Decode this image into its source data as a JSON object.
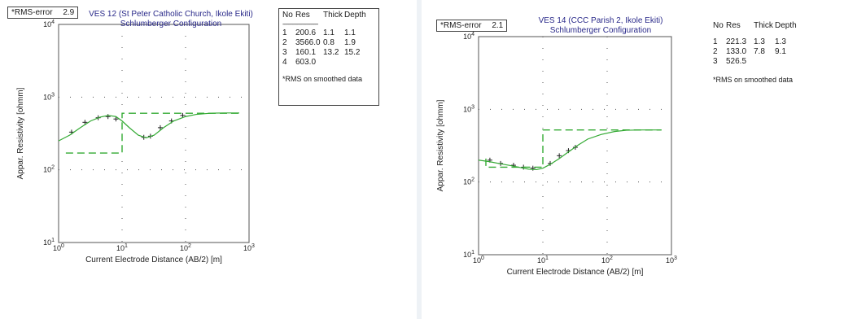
{
  "chart_data": [
    {
      "type": "line",
      "title": "VES 12 (St Peter Catholic Church, Ikole Ekiti)",
      "subtitle": "Schlumberger Configuration",
      "xlabel": "Current Electrode Distance (AB/2) [m]",
      "ylabel": "Appar. Resistivity [ohmm]",
      "x_scale": "log",
      "y_scale": "log",
      "xlim": [
        1,
        1000
      ],
      "ylim": [
        10,
        10000
      ],
      "x_ticks": [
        "10^0",
        "10^1",
        "10^2",
        "10^3"
      ],
      "y_ticks": [
        "10^1",
        "10^2",
        "10^3",
        "10^4"
      ],
      "rms_label": "*RMS-error",
      "rms_value": "2.9",
      "series": [
        {
          "name": "field",
          "kind": "points",
          "x": [
            1.6,
            2.6,
            4.2,
            6.0,
            8.0,
            22,
            28,
            40,
            60,
            90
          ],
          "y": [
            330,
            450,
            520,
            540,
            500,
            280,
            290,
            380,
            470,
            560
          ]
        },
        {
          "name": "calculated",
          "kind": "curve",
          "x": [
            1,
            1.5,
            2.2,
            3.2,
            4.5,
            6,
            8,
            10,
            13,
            18,
            24,
            32,
            45,
            65,
            100,
            150,
            250,
            400,
            700
          ],
          "y": [
            250,
            300,
            380,
            470,
            530,
            560,
            540,
            470,
            380,
            300,
            275,
            300,
            380,
            470,
            540,
            580,
            600,
            605,
            605
          ]
        },
        {
          "name": "model",
          "kind": "step",
          "x": [
            1.3,
            1.3,
            10,
            10,
            700
          ],
          "y": [
            170,
            170,
            170,
            600,
            600
          ]
        }
      ],
      "layers": {
        "header": [
          "No",
          "Res",
          "Thick",
          "Depth"
        ],
        "separator": "--------------------------",
        "rows": [
          [
            "1",
            "200.6",
            "1.1",
            "1.1"
          ],
          [
            "2",
            "3566.0",
            "0.8",
            "1.9"
          ],
          [
            "3",
            "160.1",
            "13.2",
            "15.2"
          ],
          [
            "4",
            "603.0",
            "",
            ""
          ]
        ]
      },
      "note": "*RMS on smoothed data",
      "colors": {
        "curve": "#33aa33",
        "model": "#33aa33",
        "points": "#222222"
      }
    },
    {
      "type": "line",
      "title": "VES 14 (CCC Parish 2, Ikole Ekiti)",
      "subtitle": "Schlumberger Configuration",
      "xlabel": "Current Electrode Distance (AB/2) [m]",
      "ylabel": "Appar. Resistivity [ohmm]",
      "x_scale": "log",
      "y_scale": "log",
      "xlim": [
        1,
        1000
      ],
      "ylim": [
        10,
        10000
      ],
      "x_ticks": [
        "10^0",
        "10^1",
        "10^2",
        "10^3"
      ],
      "y_ticks": [
        "10^1",
        "10^2",
        "10^3",
        "10^4"
      ],
      "rms_label": "*RMS-error",
      "rms_value": "2.1",
      "series": [
        {
          "name": "field",
          "kind": "points",
          "x": [
            1.5,
            2.2,
            3.5,
            5,
            7,
            13,
            18,
            25,
            32
          ],
          "y": [
            200,
            180,
            170,
            160,
            155,
            180,
            230,
            270,
            300
          ]
        },
        {
          "name": "calculated",
          "kind": "curve",
          "x": [
            1,
            1.5,
            2.2,
            3.2,
            4.5,
            6,
            8,
            10,
            13,
            18,
            25,
            35,
            50,
            80,
            130,
            200,
            350,
            700
          ],
          "y": [
            200,
            190,
            178,
            168,
            158,
            150,
            148,
            155,
            175,
            210,
            260,
            320,
            390,
            450,
            495,
            515,
            520,
            520
          ]
        },
        {
          "name": "model",
          "kind": "step",
          "x": [
            1.3,
            1.3,
            1.3,
            8,
            10,
            10,
            700
          ],
          "y": [
            210,
            160,
            160,
            160,
            160,
            520,
            520
          ]
        }
      ],
      "layers": {
        "header": [
          "No",
          "Res",
          "Thick",
          "Depth"
        ],
        "separator": "",
        "rows": [
          [
            "1",
            "221.3",
            "1.3",
            "1.3"
          ],
          [
            "2",
            "133.0",
            "7.8",
            "9.1"
          ],
          [
            "3",
            "526.5",
            "",
            ""
          ]
        ]
      },
      "note": "*RMS on smoothed data",
      "colors": {
        "curve": "#33aa33",
        "model": "#33aa33",
        "points": "#222222"
      }
    }
  ]
}
